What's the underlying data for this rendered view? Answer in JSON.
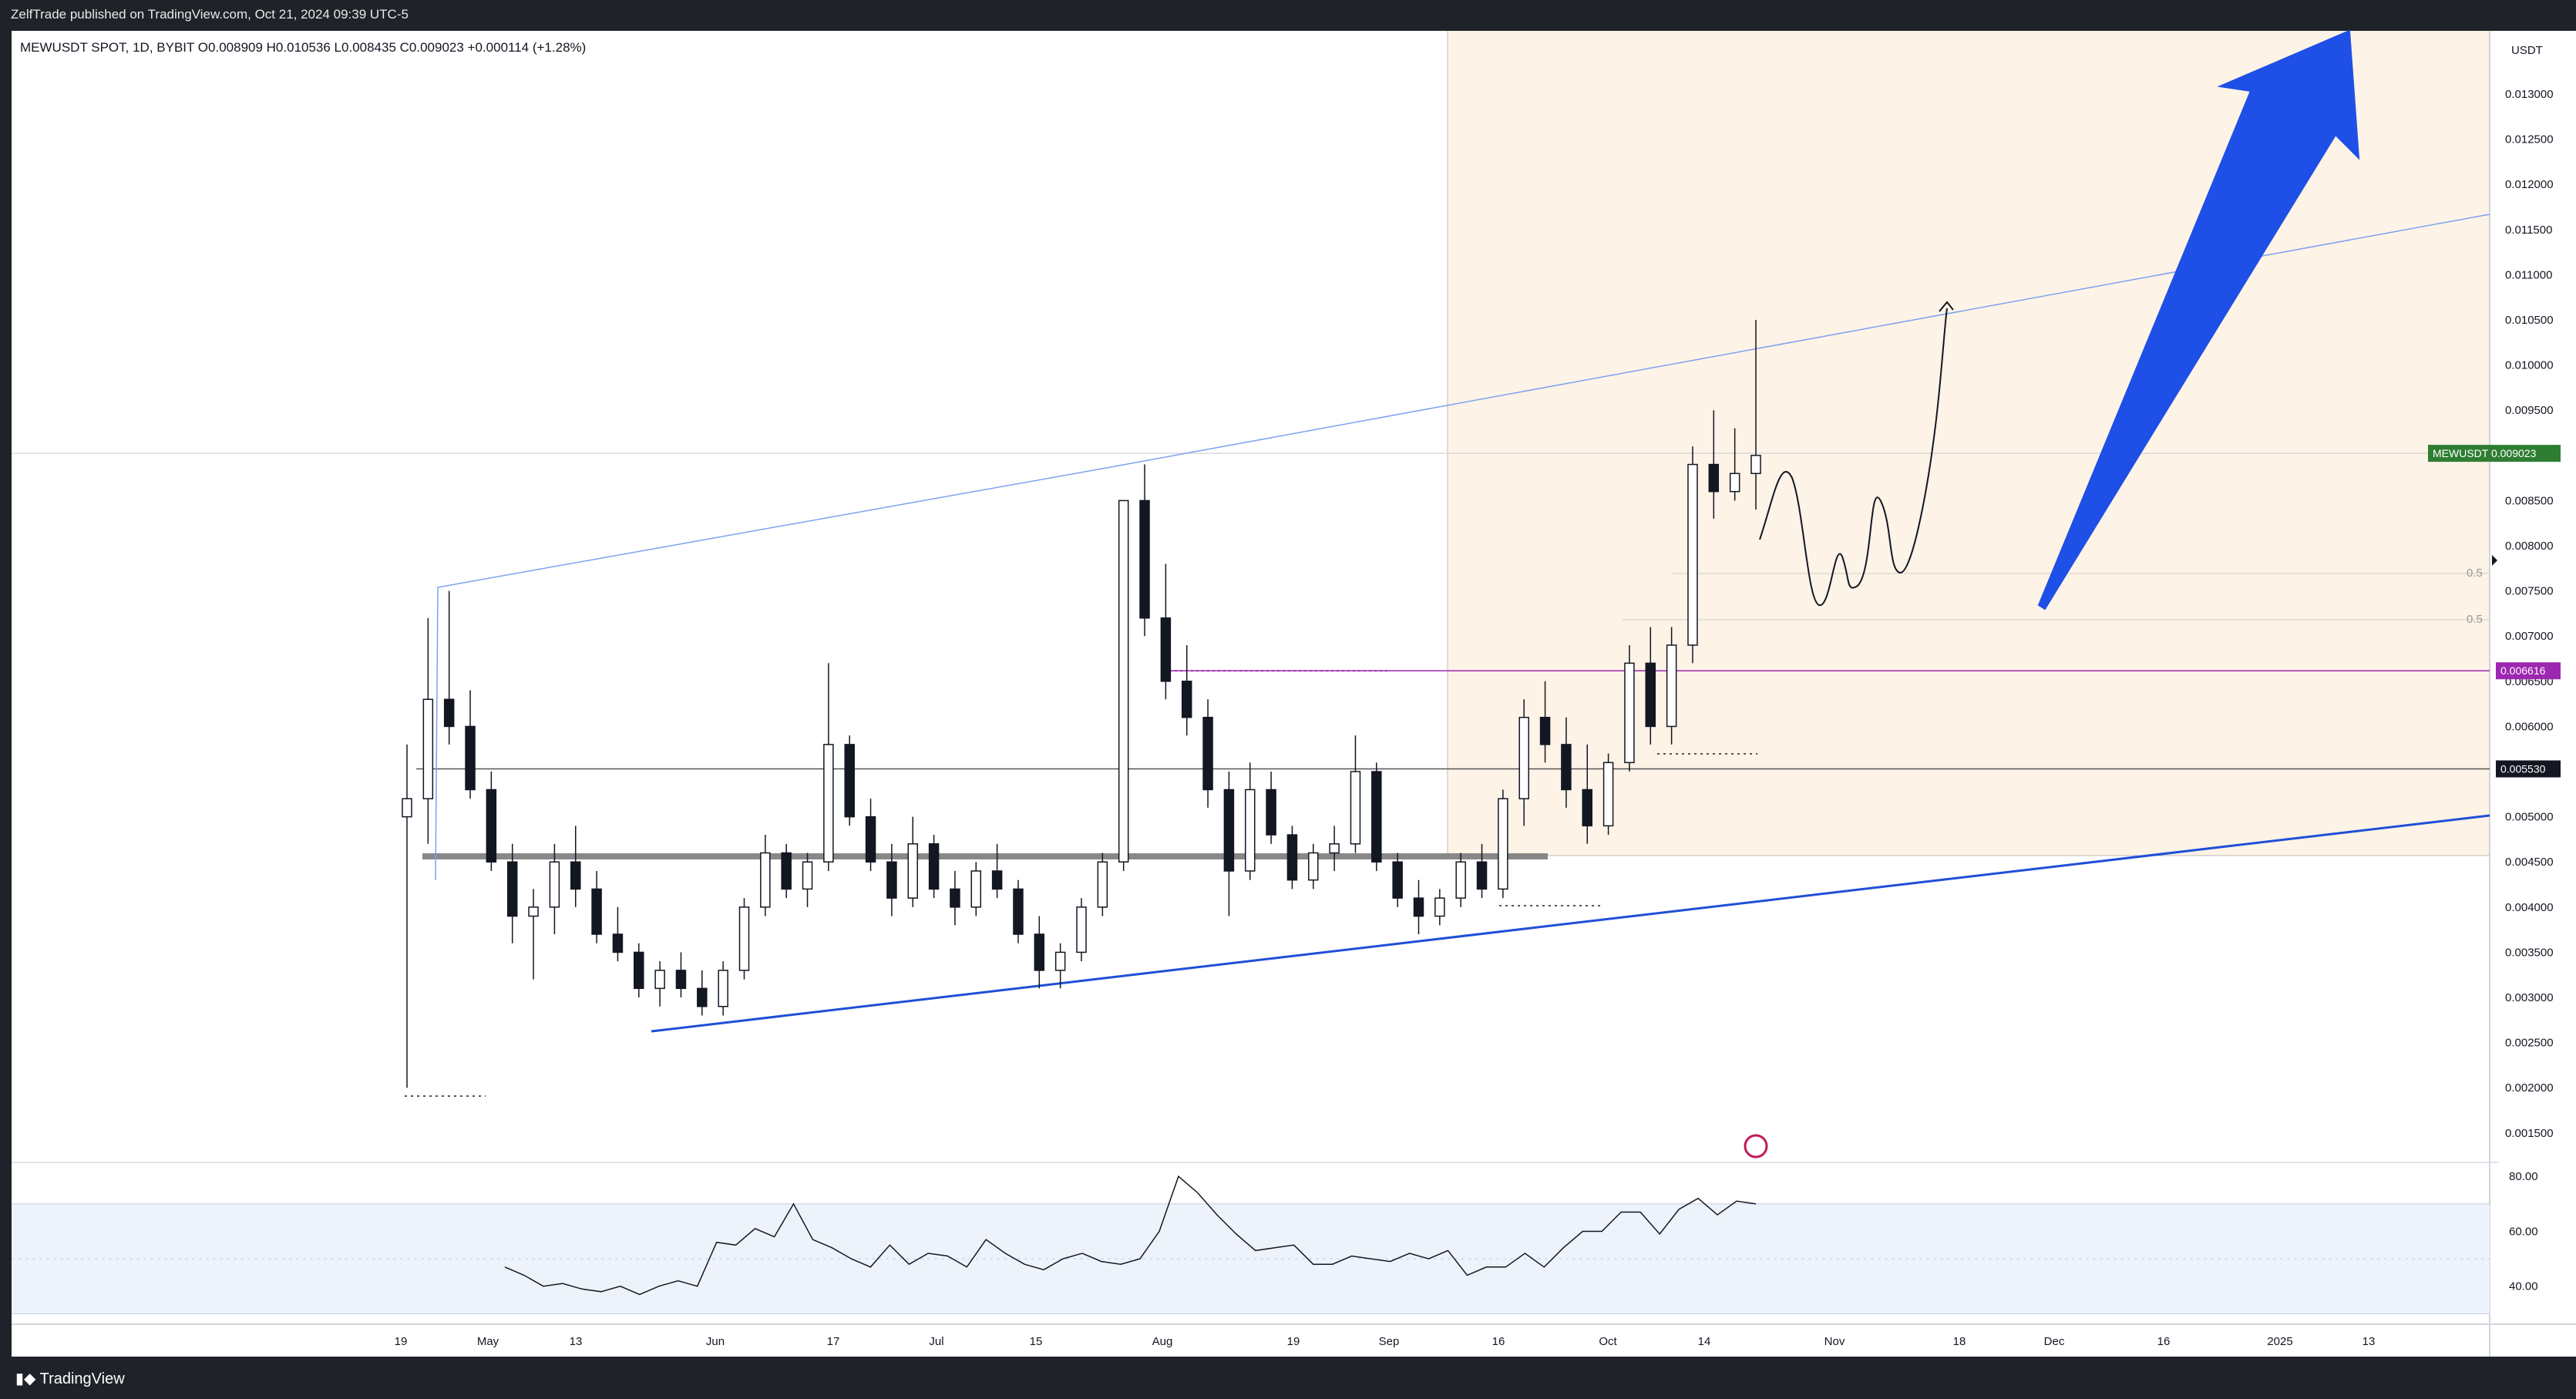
{
  "header": {
    "publisher_text": "ZelfTrade published on TradingView.com, Oct 21, 2024 09:39 UTC-5"
  },
  "legend": {
    "text": "MEWUSDT SPOT, 1D, BYBIT  O0.008909  H0.010536  L0.008435  C0.009023  +0.000114 (+1.28%)"
  },
  "footer": {
    "brand": "TradingView"
  },
  "colors": {
    "up_candle": "#ffffff",
    "down_candle": "#131722",
    "trendline": "#1f4fd8",
    "channel_upper": "#7ea1f0",
    "arrow": "#1e4fe6",
    "highlight_zone": "#fdf3e6",
    "rsi_band": "#eef3fb",
    "rsi_line": "#131722",
    "price_badge": "#2e7d32",
    "magenta_badge": "#9c27b0",
    "black_badge": "#131722"
  },
  "chart_data": {
    "type": "candlestick",
    "symbol": "MEWUSDT",
    "unit": "USDT",
    "x_ticks": [
      "19",
      "May",
      "13",
      "Jun",
      "17",
      "Jul",
      "15",
      "Aug",
      "19",
      "Sep",
      "16",
      "Oct",
      "14",
      "Nov",
      "18",
      "Dec",
      "16",
      "2025",
      "13"
    ],
    "y_ticks": [
      "0.001500",
      "0.002000",
      "0.002500",
      "0.003000",
      "0.003500",
      "0.004000",
      "0.004500",
      "0.005000",
      "0.005500",
      "0.006000",
      "0.006500",
      "0.007000",
      "0.007500",
      "0.008000",
      "0.008500",
      "0.009000",
      "0.009500",
      "0.010000",
      "0.010500",
      "0.011000",
      "0.011500",
      "0.012000",
      "0.012500",
      "0.013000"
    ],
    "ylim": [
      0.0012,
      0.0137
    ],
    "price_labels": [
      {
        "label": "MEWUSDT",
        "value": "0.009023"
      },
      {
        "value": "0.006616"
      },
      {
        "value": "0.005530"
      }
    ],
    "fib_labels": [
      "0.5",
      "0.5"
    ],
    "candles_ohlc_approx": [
      [
        0.005,
        0.0058,
        0.002,
        0.0052
      ],
      [
        0.0052,
        0.0072,
        0.0047,
        0.0063
      ],
      [
        0.0063,
        0.0075,
        0.0058,
        0.006
      ],
      [
        0.006,
        0.0064,
        0.0052,
        0.0053
      ],
      [
        0.0053,
        0.0055,
        0.0044,
        0.0045
      ],
      [
        0.0045,
        0.0047,
        0.0036,
        0.0039
      ],
      [
        0.0039,
        0.0042,
        0.0032,
        0.004
      ],
      [
        0.004,
        0.0047,
        0.0037,
        0.0045
      ],
      [
        0.0045,
        0.0049,
        0.004,
        0.0042
      ],
      [
        0.0042,
        0.0044,
        0.0036,
        0.0037
      ],
      [
        0.0037,
        0.004,
        0.0034,
        0.0035
      ],
      [
        0.0035,
        0.0036,
        0.003,
        0.0031
      ],
      [
        0.0031,
        0.0034,
        0.0029,
        0.0033
      ],
      [
        0.0033,
        0.0035,
        0.003,
        0.0031
      ],
      [
        0.0031,
        0.0033,
        0.0028,
        0.0029
      ],
      [
        0.0029,
        0.0034,
        0.0028,
        0.0033
      ],
      [
        0.0033,
        0.0041,
        0.0032,
        0.004
      ],
      [
        0.004,
        0.0048,
        0.0039,
        0.0046
      ],
      [
        0.0046,
        0.0047,
        0.0041,
        0.0042
      ],
      [
        0.0042,
        0.0046,
        0.004,
        0.0045
      ],
      [
        0.0045,
        0.0067,
        0.0044,
        0.0058
      ],
      [
        0.0058,
        0.0059,
        0.0049,
        0.005
      ],
      [
        0.005,
        0.0052,
        0.0044,
        0.0045
      ],
      [
        0.0045,
        0.0047,
        0.0039,
        0.0041
      ],
      [
        0.0041,
        0.005,
        0.004,
        0.0047
      ],
      [
        0.0047,
        0.0048,
        0.0041,
        0.0042
      ],
      [
        0.0042,
        0.0044,
        0.0038,
        0.004
      ],
      [
        0.004,
        0.0045,
        0.0039,
        0.0044
      ],
      [
        0.0044,
        0.0047,
        0.0041,
        0.0042
      ],
      [
        0.0042,
        0.0043,
        0.0036,
        0.0037
      ],
      [
        0.0037,
        0.0039,
        0.0031,
        0.0033
      ],
      [
        0.0033,
        0.0036,
        0.0031,
        0.0035
      ],
      [
        0.0035,
        0.0041,
        0.0034,
        0.004
      ],
      [
        0.004,
        0.0046,
        0.0039,
        0.0045
      ],
      [
        0.0045,
        0.0074,
        0.0044,
        0.0085
      ],
      [
        0.0085,
        0.0089,
        0.007,
        0.0072
      ],
      [
        0.0072,
        0.0078,
        0.0063,
        0.0065
      ],
      [
        0.0065,
        0.0069,
        0.0059,
        0.0061
      ],
      [
        0.0061,
        0.0063,
        0.0051,
        0.0053
      ],
      [
        0.0053,
        0.0055,
        0.0039,
        0.0044
      ],
      [
        0.0044,
        0.0056,
        0.0043,
        0.0053
      ],
      [
        0.0053,
        0.0055,
        0.0047,
        0.0048
      ],
      [
        0.0048,
        0.0049,
        0.0042,
        0.0043
      ],
      [
        0.0043,
        0.0047,
        0.0042,
        0.0046
      ],
      [
        0.0046,
        0.0049,
        0.0044,
        0.0047
      ],
      [
        0.0047,
        0.0059,
        0.0046,
        0.0055
      ],
      [
        0.0055,
        0.0056,
        0.0044,
        0.0045
      ],
      [
        0.0045,
        0.0046,
        0.004,
        0.0041
      ],
      [
        0.0041,
        0.0043,
        0.0037,
        0.0039
      ],
      [
        0.0039,
        0.0042,
        0.0038,
        0.0041
      ],
      [
        0.0041,
        0.0046,
        0.004,
        0.0045
      ],
      [
        0.0045,
        0.0047,
        0.0041,
        0.0042
      ],
      [
        0.0042,
        0.0053,
        0.0041,
        0.0052
      ],
      [
        0.0052,
        0.0063,
        0.0049,
        0.0061
      ],
      [
        0.0061,
        0.0065,
        0.0056,
        0.0058
      ],
      [
        0.0058,
        0.0061,
        0.0051,
        0.0053
      ],
      [
        0.0053,
        0.0058,
        0.0047,
        0.0049
      ],
      [
        0.0049,
        0.0057,
        0.0048,
        0.0056
      ],
      [
        0.0056,
        0.0069,
        0.0055,
        0.0067
      ],
      [
        0.0067,
        0.0071,
        0.0058,
        0.006
      ],
      [
        0.006,
        0.0071,
        0.0058,
        0.0069
      ],
      [
        0.0069,
        0.0091,
        0.0067,
        0.0089
      ],
      [
        0.0089,
        0.0095,
        0.0083,
        0.0086
      ],
      [
        0.0086,
        0.0093,
        0.0085,
        0.0088
      ],
      [
        0.0088,
        0.0105,
        0.0084,
        0.009
      ]
    ],
    "projection_path_note": "",
    "rsi": {
      "y_ticks": [
        "80.00",
        "60.00",
        "40.00"
      ],
      "values": [
        47,
        44,
        40,
        41,
        39,
        38,
        40,
        37,
        40,
        42,
        40,
        56,
        55,
        61,
        58,
        70,
        57,
        54,
        50,
        47,
        55,
        48,
        52,
        51,
        47,
        57,
        52,
        48,
        46,
        50,
        52,
        49,
        48,
        50,
        60,
        80,
        74,
        66,
        59,
        53,
        54,
        55,
        48,
        48,
        51,
        50,
        49,
        52,
        50,
        53,
        44,
        47,
        47,
        52,
        47,
        54,
        60,
        60,
        67,
        67,
        59,
        68,
        72,
        66,
        71,
        70
      ]
    }
  }
}
